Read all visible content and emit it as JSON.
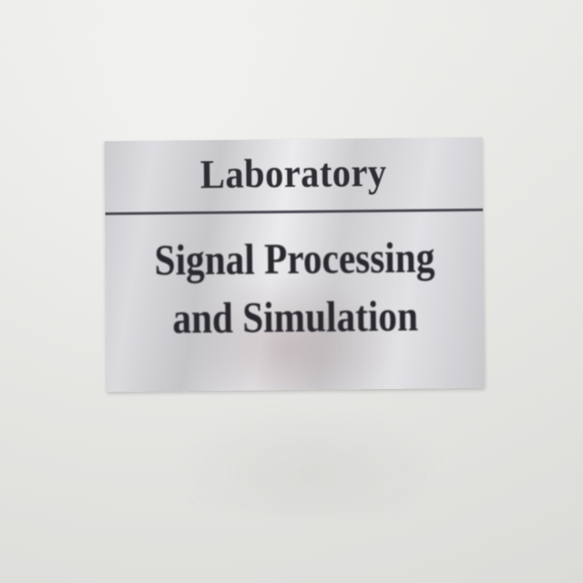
{
  "plaque": {
    "header": "Laboratory",
    "line1": "Signal Processing",
    "line2": "and Simulation"
  }
}
